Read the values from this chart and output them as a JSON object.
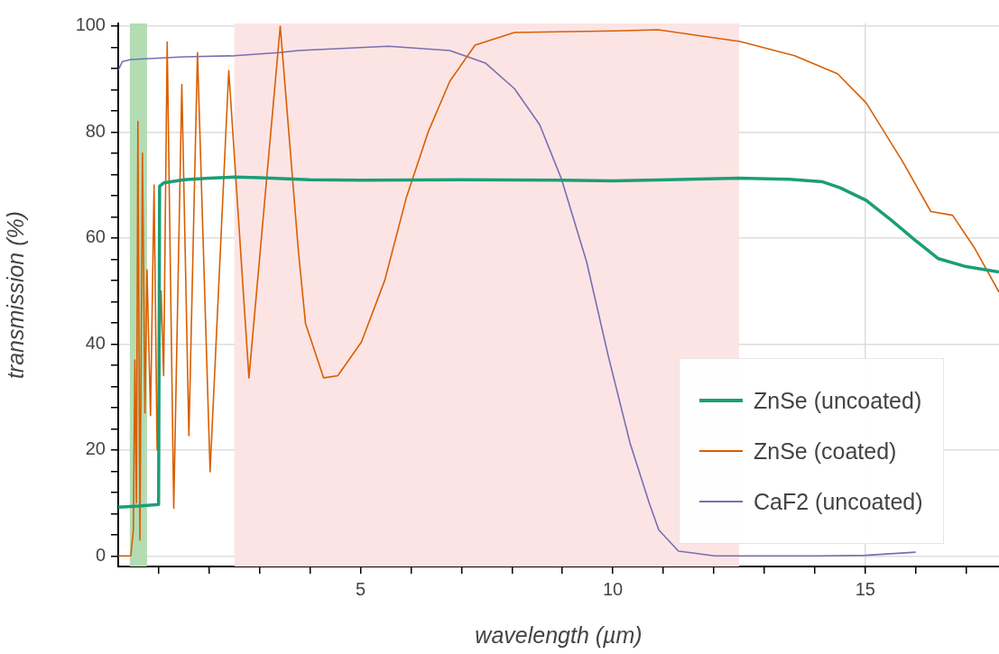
{
  "chart_data": {
    "type": "line",
    "xlabel": "wavelength (µm)",
    "ylabel": "transmission (%)",
    "xlim": [
      0.2,
      17.65
    ],
    "ylim": [
      -2,
      100.5
    ],
    "xticks": [
      {
        "value": 1,
        "label": null
      },
      {
        "value": 2,
        "label": null
      },
      {
        "value": 3,
        "label": null
      },
      {
        "value": 4,
        "label": null
      },
      5,
      {
        "value": 6,
        "label": null
      },
      {
        "value": 7,
        "label": null
      },
      {
        "value": 8,
        "label": null
      },
      {
        "value": 9,
        "label": null
      },
      10,
      {
        "value": 11,
        "label": null
      },
      {
        "value": 12,
        "label": null
      },
      {
        "value": 13,
        "label": null
      },
      {
        "value": 14,
        "label": null
      },
      15,
      {
        "value": 16,
        "label": null
      },
      {
        "value": 17,
        "label": null
      }
    ],
    "yticks": [
      0,
      {
        "value": 4,
        "label": null
      },
      {
        "value": 8,
        "label": null
      },
      {
        "value": 12,
        "label": null
      },
      {
        "value": 16,
        "label": null
      },
      20,
      {
        "value": 24,
        "label": null
      },
      {
        "value": 28,
        "label": null
      },
      {
        "value": 32,
        "label": null
      },
      {
        "value": 36,
        "label": null
      },
      40,
      {
        "value": 44,
        "label": null
      },
      {
        "value": 48,
        "label": null
      },
      {
        "value": 52,
        "label": null
      },
      {
        "value": 56,
        "label": null
      },
      60,
      {
        "value": 64,
        "label": null
      },
      {
        "value": 68,
        "label": null
      },
      {
        "value": 72,
        "label": null
      },
      {
        "value": 76,
        "label": null
      },
      80,
      {
        "value": 84,
        "label": null
      },
      {
        "value": 88,
        "label": null
      },
      {
        "value": 92,
        "label": null
      },
      {
        "value": 96,
        "label": null
      },
      100
    ],
    "grid": true,
    "legend": "bottom right",
    "bands": [
      {
        "axis": "x",
        "from": 0.43,
        "to": 0.77,
        "color": "#b3dcb3"
      },
      {
        "axis": "x",
        "from": 2.5,
        "to": 12.5,
        "color": "#fde4e4"
      }
    ],
    "series": [
      {
        "name": "ZnSe (uncoated)",
        "color": "#1b9e77",
        "x": [
          0.2,
          0.6,
          1.0,
          1.02,
          1.1,
          1.5,
          2.0,
          2.5,
          3.0,
          4.0,
          5.0,
          7.0,
          9.0,
          10.0,
          12.5,
          13.5,
          14.16,
          14.5,
          15.02,
          15.5,
          16.0,
          16.45,
          17.0,
          17.65
        ],
        "values": [
          9.2,
          9.4,
          9.7,
          69.8,
          70.4,
          71.0,
          71.3,
          71.5,
          71.4,
          71.0,
          70.9,
          71.0,
          70.9,
          70.8,
          71.3,
          71.1,
          70.6,
          69.5,
          67.1,
          63.5,
          59.5,
          56.1,
          54.6,
          53.6
        ]
      },
      {
        "name": "ZnSe (coated)",
        "color": "#d95f02",
        "x": [
          0.2,
          0.45,
          0.5,
          0.53,
          0.56,
          0.59,
          0.63,
          0.68,
          0.73,
          0.77,
          0.84,
          0.91,
          0.97,
          1.05,
          1.1,
          1.17,
          1.3,
          1.46,
          1.6,
          1.77,
          2.02,
          2.39,
          2.79,
          3.41,
          3.77,
          3.91,
          4.27,
          4.55,
          5.02,
          5.48,
          5.91,
          6.34,
          6.77,
          7.27,
          8.05,
          10.05,
          10.9,
          12.52,
          13.6,
          14.45,
          15.02,
          15.73,
          16.3,
          16.73,
          17.16,
          17.65
        ],
        "values": [
          0,
          0,
          5,
          37,
          10,
          82,
          3,
          76,
          27,
          54,
          26.5,
          70,
          20,
          50,
          34,
          97,
          9,
          89,
          22.7,
          95,
          15.9,
          91.6,
          33.6,
          100,
          57.5,
          43.9,
          33.6,
          34,
          40.4,
          52,
          67.7,
          80,
          89.6,
          96.4,
          98.8,
          99.1,
          99.3,
          97.1,
          94.4,
          91,
          85.5,
          74.6,
          65,
          64.3,
          58.2,
          49.8
        ]
      },
      {
        "name": "CaF2 (uncoated)",
        "color": "#7570b3",
        "x": [
          0.2,
          0.28,
          0.45,
          1.5,
          2.5,
          3.4,
          3.77,
          5.55,
          6.77,
          7.48,
          8.05,
          8.55,
          8.98,
          9.48,
          9.91,
          10.34,
          10.73,
          10.91,
          11.3,
          12.02,
          13.0,
          14.0,
          15.0,
          16.0
        ],
        "values": [
          91.6,
          93.3,
          93.7,
          94.2,
          94.4,
          95,
          95.4,
          96.2,
          95.4,
          93,
          88.2,
          81.4,
          71.2,
          55.5,
          37.7,
          21.3,
          9.7,
          4.9,
          0.9,
          0,
          0,
          0,
          0.1,
          0.7
        ]
      }
    ]
  }
}
